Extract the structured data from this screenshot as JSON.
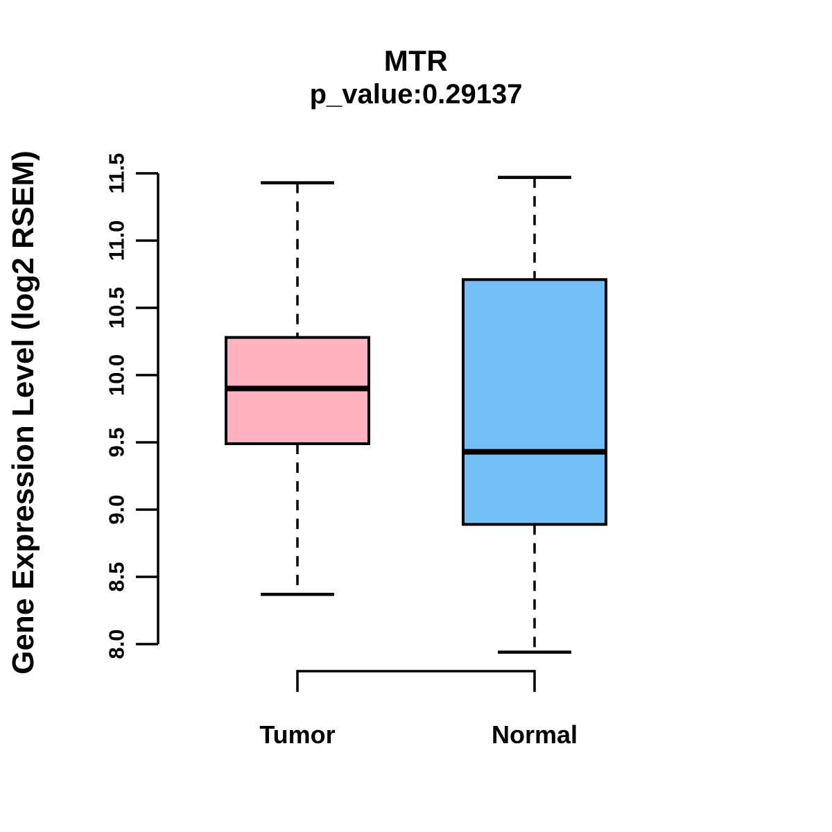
{
  "chart_data": {
    "type": "boxplot",
    "title": "MTR",
    "subtitle": "p_value:0.29137",
    "ylabel": "Gene Expression Level (log2 RSEM)",
    "ylim": [
      8.0,
      11.5
    ],
    "yticks": [
      "8.0",
      "8.5",
      "9.0",
      "9.5",
      "10.0",
      "10.5",
      "11.0",
      "11.5"
    ],
    "grid": false,
    "legend": "none",
    "colors": {
      "axis": "#000000",
      "box_border": "#000000",
      "median": "#000000"
    },
    "groups": [
      {
        "label": "Tumor",
        "color": "#FFB3C1",
        "whisker_low": 8.37,
        "q1": 9.49,
        "median": 9.9,
        "q3": 10.28,
        "whisker_high": 11.43
      },
      {
        "label": "Normal",
        "color": "#74BFF7",
        "whisker_low": 7.94,
        "q1": 8.89,
        "median": 9.43,
        "q3": 10.71,
        "whisker_high": 11.47
      }
    ]
  }
}
